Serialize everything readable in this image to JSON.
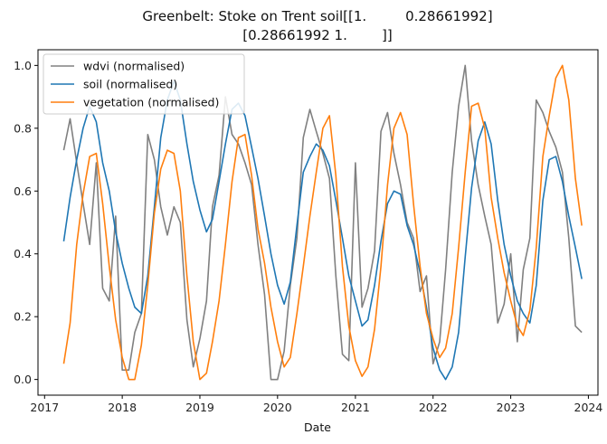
{
  "chart_data": {
    "type": "line",
    "title_line1": "Greenbelt: Stoke on Trent soil[[1.         0.28661992]",
    "title_line2": "[0.28661992 1.        ]]",
    "xlabel": "Date",
    "ylabel": "",
    "x_ticks": [
      "2017",
      "2018",
      "2019",
      "2020",
      "2021",
      "2022",
      "2023",
      "2024"
    ],
    "y_ticks": [
      "0.0",
      "0.2",
      "0.4",
      "0.6",
      "0.8",
      "1.0"
    ],
    "xlim": [
      "2016-12-01",
      "2024-02-15"
    ],
    "ylim": [
      -0.05,
      1.05
    ],
    "legend_position": "upper left",
    "series": [
      {
        "name": "wdvi (normalised)",
        "color": "#808080",
        "points": [
          [
            "2017-04-01",
            0.73
          ],
          [
            "2017-05-01",
            0.83
          ],
          [
            "2017-06-01",
            0.69
          ],
          [
            "2017-07-01",
            0.56
          ],
          [
            "2017-08-01",
            0.43
          ],
          [
            "2017-09-01",
            0.69
          ],
          [
            "2017-10-01",
            0.29
          ],
          [
            "2017-11-01",
            0.25
          ],
          [
            "2017-12-01",
            0.52
          ],
          [
            "2018-01-01",
            0.03
          ],
          [
            "2018-02-01",
            0.03
          ],
          [
            "2018-03-01",
            0.15
          ],
          [
            "2018-04-01",
            0.21
          ],
          [
            "2018-05-01",
            0.78
          ],
          [
            "2018-06-01",
            0.7
          ],
          [
            "2018-07-01",
            0.55
          ],
          [
            "2018-08-01",
            0.46
          ],
          [
            "2018-09-01",
            0.55
          ],
          [
            "2018-10-01",
            0.5
          ],
          [
            "2018-11-01",
            0.19
          ],
          [
            "2018-12-01",
            0.04
          ],
          [
            "2019-01-01",
            0.13
          ],
          [
            "2019-02-01",
            0.25
          ],
          [
            "2019-03-01",
            0.55
          ],
          [
            "2019-04-01",
            0.65
          ],
          [
            "2019-05-01",
            0.9
          ],
          [
            "2019-06-01",
            0.78
          ],
          [
            "2019-07-01",
            0.75
          ],
          [
            "2019-08-01",
            0.69
          ],
          [
            "2019-09-01",
            0.62
          ],
          [
            "2019-10-01",
            0.43
          ],
          [
            "2019-11-01",
            0.27
          ],
          [
            "2019-12-01",
            0.0
          ],
          [
            "2020-01-01",
            0.0
          ],
          [
            "2020-02-01",
            0.09
          ],
          [
            "2020-03-01",
            0.3
          ],
          [
            "2020-04-01",
            0.45
          ],
          [
            "2020-05-01",
            0.77
          ],
          [
            "2020-06-01",
            0.86
          ],
          [
            "2020-07-01",
            0.79
          ],
          [
            "2020-08-01",
            0.72
          ],
          [
            "2020-09-01",
            0.64
          ],
          [
            "2020-10-01",
            0.33
          ],
          [
            "2020-11-01",
            0.08
          ],
          [
            "2020-12-01",
            0.06
          ],
          [
            "2021-01-01",
            0.69
          ],
          [
            "2021-02-01",
            0.23
          ],
          [
            "2021-03-01",
            0.29
          ],
          [
            "2021-04-01",
            0.41
          ],
          [
            "2021-05-01",
            0.79
          ],
          [
            "2021-06-01",
            0.85
          ],
          [
            "2021-07-01",
            0.72
          ],
          [
            "2021-08-01",
            0.62
          ],
          [
            "2021-09-01",
            0.5
          ],
          [
            "2021-10-01",
            0.45
          ],
          [
            "2021-11-01",
            0.28
          ],
          [
            "2021-12-01",
            0.33
          ],
          [
            "2022-01-01",
            0.05
          ],
          [
            "2022-02-01",
            0.12
          ],
          [
            "2022-03-01",
            0.35
          ],
          [
            "2022-04-01",
            0.66
          ],
          [
            "2022-05-01",
            0.87
          ],
          [
            "2022-06-01",
            1.0
          ],
          [
            "2022-07-01",
            0.76
          ],
          [
            "2022-08-01",
            0.62
          ],
          [
            "2022-09-01",
            0.52
          ],
          [
            "2022-10-01",
            0.43
          ],
          [
            "2022-11-01",
            0.18
          ],
          [
            "2022-12-01",
            0.24
          ],
          [
            "2023-01-01",
            0.4
          ],
          [
            "2023-02-01",
            0.12
          ],
          [
            "2023-03-01",
            0.35
          ],
          [
            "2023-04-01",
            0.45
          ],
          [
            "2023-05-01",
            0.89
          ],
          [
            "2023-06-01",
            0.85
          ],
          [
            "2023-07-01",
            0.79
          ],
          [
            "2023-08-01",
            0.74
          ],
          [
            "2023-09-01",
            0.66
          ],
          [
            "2023-10-01",
            0.45
          ],
          [
            "2023-11-01",
            0.17
          ],
          [
            "2023-12-01",
            0.15
          ]
        ]
      },
      {
        "name": "soil (normalised)",
        "color": "#1f77b4",
        "points": [
          [
            "2017-04-01",
            0.44
          ],
          [
            "2017-05-01",
            0.58
          ],
          [
            "2017-06-01",
            0.7
          ],
          [
            "2017-07-01",
            0.8
          ],
          [
            "2017-08-01",
            0.87
          ],
          [
            "2017-09-01",
            0.82
          ],
          [
            "2017-10-01",
            0.69
          ],
          [
            "2017-11-01",
            0.6
          ],
          [
            "2017-12-01",
            0.47
          ],
          [
            "2018-01-01",
            0.37
          ],
          [
            "2018-02-01",
            0.29
          ],
          [
            "2018-03-01",
            0.23
          ],
          [
            "2018-04-01",
            0.21
          ],
          [
            "2018-05-01",
            0.33
          ],
          [
            "2018-06-01",
            0.55
          ],
          [
            "2018-07-01",
            0.77
          ],
          [
            "2018-08-01",
            0.89
          ],
          [
            "2018-09-01",
            0.95
          ],
          [
            "2018-10-01",
            0.89
          ],
          [
            "2018-11-01",
            0.75
          ],
          [
            "2018-12-01",
            0.63
          ],
          [
            "2019-01-01",
            0.54
          ],
          [
            "2019-02-01",
            0.47
          ],
          [
            "2019-03-01",
            0.51
          ],
          [
            "2019-04-01",
            0.63
          ],
          [
            "2019-05-01",
            0.75
          ],
          [
            "2019-06-01",
            0.86
          ],
          [
            "2019-07-01",
            0.88
          ],
          [
            "2019-08-01",
            0.84
          ],
          [
            "2019-09-01",
            0.74
          ],
          [
            "2019-10-01",
            0.64
          ],
          [
            "2019-11-01",
            0.52
          ],
          [
            "2019-12-01",
            0.4
          ],
          [
            "2020-01-01",
            0.3
          ],
          [
            "2020-02-01",
            0.24
          ],
          [
            "2020-03-01",
            0.31
          ],
          [
            "2020-04-01",
            0.49
          ],
          [
            "2020-05-01",
            0.66
          ],
          [
            "2020-06-01",
            0.71
          ],
          [
            "2020-07-01",
            0.75
          ],
          [
            "2020-08-01",
            0.73
          ],
          [
            "2020-09-01",
            0.68
          ],
          [
            "2020-10-01",
            0.57
          ],
          [
            "2020-11-01",
            0.45
          ],
          [
            "2020-12-01",
            0.33
          ],
          [
            "2021-01-01",
            0.25
          ],
          [
            "2021-02-01",
            0.17
          ],
          [
            "2021-03-01",
            0.19
          ],
          [
            "2021-04-01",
            0.3
          ],
          [
            "2021-05-01",
            0.44
          ],
          [
            "2021-06-01",
            0.56
          ],
          [
            "2021-07-01",
            0.6
          ],
          [
            "2021-08-01",
            0.59
          ],
          [
            "2021-09-01",
            0.49
          ],
          [
            "2021-10-01",
            0.43
          ],
          [
            "2021-11-01",
            0.34
          ],
          [
            "2021-12-01",
            0.23
          ],
          [
            "2022-01-01",
            0.1
          ],
          [
            "2022-02-01",
            0.03
          ],
          [
            "2022-03-01",
            0.0
          ],
          [
            "2022-04-01",
            0.04
          ],
          [
            "2022-05-01",
            0.15
          ],
          [
            "2022-06-01",
            0.39
          ],
          [
            "2022-07-01",
            0.61
          ],
          [
            "2022-08-01",
            0.76
          ],
          [
            "2022-09-01",
            0.82
          ],
          [
            "2022-10-01",
            0.75
          ],
          [
            "2022-11-01",
            0.57
          ],
          [
            "2022-12-01",
            0.43
          ],
          [
            "2023-01-01",
            0.33
          ],
          [
            "2023-02-01",
            0.25
          ],
          [
            "2023-03-01",
            0.21
          ],
          [
            "2023-04-01",
            0.18
          ],
          [
            "2023-05-01",
            0.3
          ],
          [
            "2023-06-01",
            0.57
          ],
          [
            "2023-07-01",
            0.7
          ],
          [
            "2023-08-01",
            0.71
          ],
          [
            "2023-09-01",
            0.63
          ],
          [
            "2023-10-01",
            0.52
          ],
          [
            "2023-11-01",
            0.42
          ],
          [
            "2023-12-01",
            0.32
          ]
        ]
      },
      {
        "name": "vegetation (normalised)",
        "color": "#ff7f0e",
        "points": [
          [
            "2017-04-01",
            0.05
          ],
          [
            "2017-05-01",
            0.18
          ],
          [
            "2017-06-01",
            0.43
          ],
          [
            "2017-07-01",
            0.59
          ],
          [
            "2017-08-01",
            0.71
          ],
          [
            "2017-09-01",
            0.72
          ],
          [
            "2017-10-01",
            0.56
          ],
          [
            "2017-11-01",
            0.36
          ],
          [
            "2017-12-01",
            0.19
          ],
          [
            "2018-01-01",
            0.07
          ],
          [
            "2018-02-01",
            0.0
          ],
          [
            "2018-03-01",
            0.0
          ],
          [
            "2018-04-01",
            0.11
          ],
          [
            "2018-05-01",
            0.3
          ],
          [
            "2018-06-01",
            0.53
          ],
          [
            "2018-07-01",
            0.67
          ],
          [
            "2018-08-01",
            0.73
          ],
          [
            "2018-09-01",
            0.72
          ],
          [
            "2018-10-01",
            0.6
          ],
          [
            "2018-11-01",
            0.33
          ],
          [
            "2018-12-01",
            0.12
          ],
          [
            "2019-01-01",
            0.0
          ],
          [
            "2019-02-01",
            0.02
          ],
          [
            "2019-03-01",
            0.12
          ],
          [
            "2019-04-01",
            0.25
          ],
          [
            "2019-05-01",
            0.43
          ],
          [
            "2019-06-01",
            0.63
          ],
          [
            "2019-07-01",
            0.77
          ],
          [
            "2019-08-01",
            0.78
          ],
          [
            "2019-09-01",
            0.65
          ],
          [
            "2019-10-01",
            0.48
          ],
          [
            "2019-11-01",
            0.37
          ],
          [
            "2019-12-01",
            0.23
          ],
          [
            "2020-01-01",
            0.12
          ],
          [
            "2020-02-01",
            0.04
          ],
          [
            "2020-03-01",
            0.07
          ],
          [
            "2020-04-01",
            0.21
          ],
          [
            "2020-05-01",
            0.36
          ],
          [
            "2020-06-01",
            0.52
          ],
          [
            "2020-07-01",
            0.66
          ],
          [
            "2020-08-01",
            0.8
          ],
          [
            "2020-09-01",
            0.84
          ],
          [
            "2020-10-01",
            0.65
          ],
          [
            "2020-11-01",
            0.36
          ],
          [
            "2020-12-01",
            0.17
          ],
          [
            "2021-01-01",
            0.06
          ],
          [
            "2021-02-01",
            0.01
          ],
          [
            "2021-03-01",
            0.04
          ],
          [
            "2021-04-01",
            0.16
          ],
          [
            "2021-05-01",
            0.36
          ],
          [
            "2021-06-01",
            0.62
          ],
          [
            "2021-07-01",
            0.8
          ],
          [
            "2021-08-01",
            0.85
          ],
          [
            "2021-09-01",
            0.78
          ],
          [
            "2021-10-01",
            0.56
          ],
          [
            "2021-11-01",
            0.36
          ],
          [
            "2021-12-01",
            0.21
          ],
          [
            "2022-01-01",
            0.13
          ],
          [
            "2022-02-01",
            0.07
          ],
          [
            "2022-03-01",
            0.1
          ],
          [
            "2022-04-01",
            0.21
          ],
          [
            "2022-05-01",
            0.42
          ],
          [
            "2022-06-01",
            0.66
          ],
          [
            "2022-07-01",
            0.87
          ],
          [
            "2022-08-01",
            0.88
          ],
          [
            "2022-09-01",
            0.8
          ],
          [
            "2022-10-01",
            0.58
          ],
          [
            "2022-11-01",
            0.45
          ],
          [
            "2022-12-01",
            0.34
          ],
          [
            "2023-01-01",
            0.25
          ],
          [
            "2023-02-01",
            0.17
          ],
          [
            "2023-03-01",
            0.14
          ],
          [
            "2023-04-01",
            0.22
          ],
          [
            "2023-05-01",
            0.42
          ],
          [
            "2023-06-01",
            0.71
          ],
          [
            "2023-07-01",
            0.84
          ],
          [
            "2023-08-01",
            0.96
          ],
          [
            "2023-09-01",
            1.0
          ],
          [
            "2023-10-01",
            0.89
          ],
          [
            "2023-11-01",
            0.64
          ],
          [
            "2023-12-01",
            0.49
          ]
        ]
      }
    ]
  }
}
